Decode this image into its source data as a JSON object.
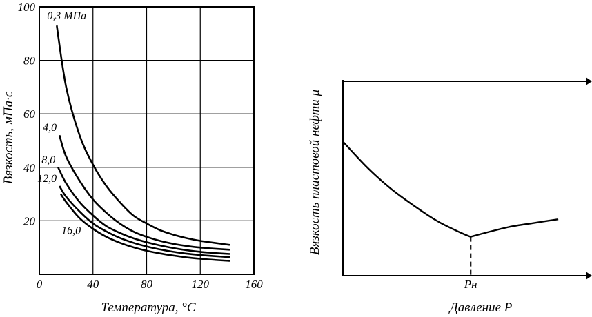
{
  "chart_data": [
    {
      "type": "line",
      "xlabel": "Температура, °C",
      "ylabel": "Вязкость, мПа·с",
      "xlim": [
        0,
        160
      ],
      "ylim": [
        0,
        100
      ],
      "xticks": [
        "0",
        "40",
        "80",
        "120",
        "160"
      ],
      "yticks": [
        "20",
        "40",
        "60",
        "80",
        "100"
      ],
      "grid": true,
      "series": [
        {
          "name": "0,3 МПа",
          "x": [
            13,
            20,
            30,
            40,
            50,
            60,
            70,
            80,
            90,
            100,
            110,
            120,
            130,
            142
          ],
          "y": [
            93,
            70,
            52,
            41,
            33,
            27,
            22,
            19,
            16.5,
            14.8,
            13.5,
            12.5,
            11.8,
            11
          ]
        },
        {
          "name": "4,0",
          "x": [
            15,
            20,
            30,
            40,
            50,
            60,
            70,
            80,
            90,
            100,
            110,
            120,
            130,
            142
          ],
          "y": [
            52,
            44,
            35,
            28,
            23,
            19,
            16,
            14,
            12.5,
            11.4,
            10.6,
            10,
            9.6,
            9.2
          ]
        },
        {
          "name": "8,0",
          "x": [
            14,
            20,
            30,
            40,
            50,
            60,
            70,
            80,
            90,
            100,
            110,
            120,
            130,
            142
          ],
          "y": [
            40,
            34,
            27,
            22,
            18,
            15.5,
            13.5,
            12,
            10.8,
            9.8,
            9,
            8.4,
            8,
            7.6
          ]
        },
        {
          "name": "12,0",
          "x": [
            15,
            20,
            30,
            40,
            50,
            60,
            70,
            80,
            90,
            100,
            110,
            120,
            130,
            142
          ],
          "y": [
            33,
            29,
            23.5,
            19,
            16,
            13.6,
            11.8,
            10.4,
            9.3,
            8.4,
            7.7,
            7.2,
            6.8,
            6.4
          ]
        },
        {
          "name": "16,0",
          "x": [
            16,
            20,
            30,
            40,
            50,
            60,
            70,
            80,
            90,
            100,
            110,
            120,
            130,
            142
          ],
          "y": [
            30,
            27,
            21,
            17,
            14,
            11.8,
            10.1,
            8.8,
            7.8,
            7,
            6.3,
            5.8,
            5.4,
            5
          ]
        }
      ],
      "label_positions": [
        "top",
        "left",
        "left",
        "left",
        "below"
      ]
    },
    {
      "type": "line",
      "xlabel": "Давление P",
      "ylabel": "Вязкость пластовой нефти μ",
      "xticks": [
        "Pн"
      ],
      "marker_label": "Pн",
      "grid": false,
      "xlim": [
        0,
        1
      ],
      "ylim": [
        0,
        1
      ],
      "series": [
        {
          "x": [
            0,
            0.1,
            0.2,
            0.3,
            0.4,
            0.5,
            0.54,
            0.6,
            0.7,
            0.8,
            0.91
          ],
          "y": [
            0.69,
            0.56,
            0.45,
            0.36,
            0.28,
            0.22,
            0.2,
            0.22,
            0.25,
            0.27,
            0.29
          ]
        }
      ],
      "marker_x": 0.54,
      "marker_y": 0.2
    }
  ]
}
